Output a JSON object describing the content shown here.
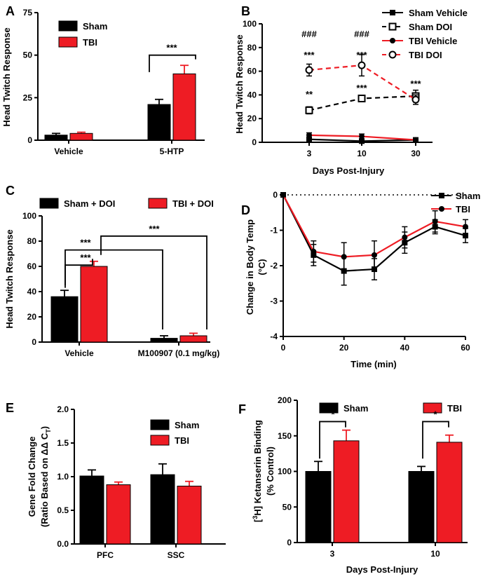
{
  "colors": {
    "sham": "#000000",
    "tbi": "#ee1c24"
  },
  "chart_data": [
    {
      "panel": "A",
      "type": "bar",
      "ylabel": "Head Twitch Response",
      "ylim": [
        0,
        75
      ],
      "yticks": [
        "0",
        "25",
        "50",
        "75"
      ],
      "categories": [
        "Vehicle",
        "5-HTP"
      ],
      "series": [
        {
          "name": "Sham",
          "values": [
            3,
            21
          ],
          "errors": [
            1,
            3
          ]
        },
        {
          "name": "TBI",
          "values": [
            4,
            39
          ],
          "errors": [
            0.7,
            5
          ]
        }
      ],
      "annotations": [
        "***"
      ]
    },
    {
      "panel": "B",
      "type": "line",
      "xlabel": "Days Post-Injury",
      "ylabel": "Head Twitch Response",
      "ylim": [
        0,
        100
      ],
      "yticks": [
        "0",
        "20",
        "40",
        "60",
        "80",
        "100"
      ],
      "x_categories": [
        "3",
        "10",
        "30"
      ],
      "series": [
        {
          "name": "Sham Vehicle",
          "values": [
            2.5,
            1,
            2
          ],
          "errors": [
            1,
            0.5,
            0.5
          ]
        },
        {
          "name": "Sham DOI",
          "values": [
            27,
            37,
            39
          ],
          "errors": [
            3,
            2,
            5
          ]
        },
        {
          "name": "TBI Vehicle",
          "values": [
            6,
            5,
            2
          ],
          "errors": [
            2,
            2,
            1
          ]
        },
        {
          "name": "TBI DOI",
          "values": [
            61,
            65,
            36
          ],
          "errors": [
            5,
            9,
            4
          ]
        }
      ],
      "annotations": [
        "###",
        "***",
        "###",
        "***",
        "**",
        "***",
        "***"
      ]
    },
    {
      "panel": "C",
      "type": "bar",
      "ylabel": "Head Twitch Response",
      "ylim": [
        0,
        100
      ],
      "yticks": [
        "0",
        "20",
        "40",
        "60",
        "80",
        "100"
      ],
      "categories": [
        "Vehicle",
        "M100907 (0.1 mg/kg)"
      ],
      "series": [
        {
          "name": "Sham + DOI",
          "values": [
            36,
            3
          ],
          "errors": [
            5,
            2
          ]
        },
        {
          "name": "TBI + DOI",
          "values": [
            60,
            5
          ],
          "errors": [
            4,
            2
          ]
        }
      ],
      "annotations": [
        "***",
        "***",
        "***"
      ]
    },
    {
      "panel": "D",
      "type": "line",
      "xlabel": "Time (min)",
      "ylabel": "Change in Body Temp",
      "ylabel2": "(°C)",
      "xlim": [
        0,
        60
      ],
      "ylim": [
        -4,
        0
      ],
      "xticks": [
        "0",
        "20",
        "40",
        "60"
      ],
      "yticks": [
        "0",
        "-1",
        "-2",
        "-3",
        "-4"
      ],
      "x": [
        0,
        10,
        20,
        30,
        40,
        50,
        60
      ],
      "series": [
        {
          "name": "Sham",
          "values": [
            0,
            -1.7,
            -2.15,
            -2.1,
            -1.35,
            -0.9,
            -1.15
          ],
          "errors": [
            0,
            0.3,
            0.4,
            0.3,
            0.3,
            0.2,
            0.2
          ]
        },
        {
          "name": "TBI",
          "values": [
            0,
            -1.6,
            -1.75,
            -1.7,
            -1.2,
            -0.75,
            -0.9
          ],
          "errors": [
            0,
            0.3,
            0.4,
            0.4,
            0.3,
            0.3,
            0.2
          ]
        }
      ]
    },
    {
      "panel": "E",
      "type": "bar",
      "ylabel": "Gene Fold Change",
      "ylabel2": "(Ratio Based on ΔΔ C",
      "ylabel2_sub": "T",
      "ylabel2_end": ")",
      "ylim": [
        0,
        2
      ],
      "yticks": [
        "0.0",
        "0.5",
        "1.0",
        "1.5",
        "2.0"
      ],
      "categories": [
        "PFC",
        "SSC"
      ],
      "series": [
        {
          "name": "Sham",
          "values": [
            1.01,
            1.03
          ],
          "errors": [
            0.09,
            0.16
          ]
        },
        {
          "name": "TBI",
          "values": [
            0.88,
            0.86
          ],
          "errors": [
            0.04,
            0.07
          ]
        }
      ]
    },
    {
      "panel": "F",
      "type": "bar",
      "xlabel": "Days Post-Injury",
      "ylabel_pre": "[",
      "ylabel_sup": "3",
      "ylabel_post": "H] Ketanserin Binding",
      "ylabel2": "(% Control)",
      "ylim": [
        0,
        200
      ],
      "yticks": [
        "0",
        "50",
        "100",
        "150",
        "200"
      ],
      "categories": [
        "3",
        "10"
      ],
      "series": [
        {
          "name": "Sham",
          "values": [
            100,
            100
          ],
          "errors": [
            14,
            7
          ]
        },
        {
          "name": "TBI",
          "values": [
            143,
            141
          ],
          "errors": [
            15,
            10
          ]
        }
      ],
      "annotations": [
        "*",
        "*"
      ]
    }
  ]
}
